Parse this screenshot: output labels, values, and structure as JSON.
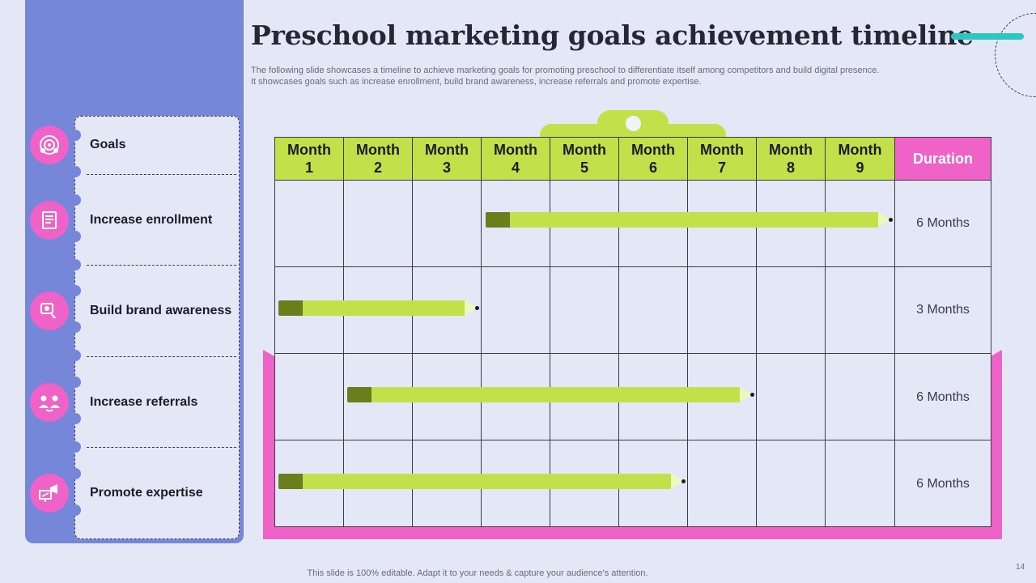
{
  "title": "Preschool marketing goals achievement timeline",
  "subtitle_line1": "The following slide showcases a timeline to achieve marketing goals for promoting preschool to differentiate itself among competitors and build digital presence.",
  "subtitle_line2": "It showcases goals such as increase enrollment, build brand awareness, increase referrals and promote expertise.",
  "goals_header": "Goals",
  "goals": [
    {
      "label": "Increase enrollment",
      "icon": "enrollment-form-icon"
    },
    {
      "label": "Build brand awareness",
      "icon": "brand-awareness-icon"
    },
    {
      "label": "Increase referrals",
      "icon": "referral-people-icon"
    },
    {
      "label": "Promote expertise",
      "icon": "megaphone-presentation-icon"
    }
  ],
  "goals_header_icon": "team-target-icon",
  "months": [
    {
      "l1": "Month",
      "l2": "1"
    },
    {
      "l1": "Month",
      "l2": "2"
    },
    {
      "l1": "Month",
      "l2": "3"
    },
    {
      "l1": "Month",
      "l2": "4"
    },
    {
      "l1": "Month",
      "l2": "5"
    },
    {
      "l1": "Month",
      "l2": "6"
    },
    {
      "l1": "Month",
      "l2": "7"
    },
    {
      "l1": "Month",
      "l2": "8"
    },
    {
      "l1": "Month",
      "l2": "9"
    }
  ],
  "duration_header": "Duration",
  "durations": [
    "6 Months",
    "3 Months",
    "6 Months",
    "6 Months"
  ],
  "timeline": [
    {
      "goal": "Increase enrollment",
      "start_month": 4,
      "end_month": 9
    },
    {
      "goal": "Build brand awareness",
      "start_month": 1,
      "end_month": 3
    },
    {
      "goal": "Increase referrals",
      "start_month": 2,
      "end_month": 7
    },
    {
      "goal": "Promote expertise",
      "start_month": 1,
      "end_month": 6
    }
  ],
  "footer": "This slide is 100% editable. Adapt it to your needs & capture your audience’s attention.",
  "page_number": "14",
  "colors": {
    "lime": "#c2e04a",
    "pink": "#ef62c8",
    "periwinkle": "#7686d8",
    "teal": "#2ec7c0",
    "background": "#e4e7f6"
  }
}
